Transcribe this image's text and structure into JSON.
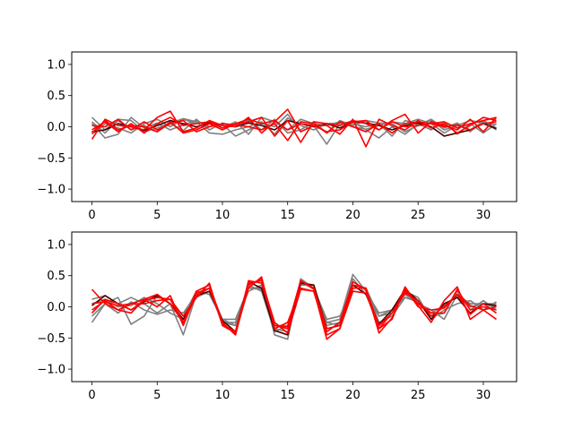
{
  "figure": {
    "background": "#ffffff",
    "colors": {
      "gray_series": "#808080",
      "dark_series": "#4a0000",
      "red_series": "#ff0000"
    }
  },
  "chart_data": [
    {
      "type": "line",
      "title": "",
      "xlabel": "",
      "ylabel": "",
      "xlim": [
        -1.55,
        32.55
      ],
      "ylim": [
        -1.2,
        1.2
      ],
      "xticks": [
        0,
        5,
        10,
        15,
        20,
        25,
        30
      ],
      "yticks": [
        -1.0,
        -0.5,
        0.0,
        0.5,
        1.0
      ],
      "xtick_labels": [
        "0",
        "5",
        "10",
        "15",
        "20",
        "25",
        "30"
      ],
      "ytick_labels": [
        "−1.0",
        "−0.5",
        "0.0",
        "0.5",
        "1.0"
      ],
      "grid": false,
      "x": [
        0,
        1,
        2,
        3,
        4,
        5,
        6,
        7,
        8,
        9,
        10,
        11,
        12,
        13,
        14,
        15,
        16,
        17,
        18,
        19,
        20,
        21,
        22,
        23,
        24,
        25,
        26,
        27,
        28,
        29,
        30,
        31
      ],
      "series": [
        {
          "color": "#808080",
          "values": [
            0.15,
            -0.05,
            0.12,
            0.1,
            -0.08,
            -0.02,
            0.06,
            0.13,
            0.08,
            -0.1,
            -0.12,
            -0.05,
            0.0,
            0.08,
            -0.12,
            0.14,
            0.02,
            -0.05,
            0.05,
            0.06,
            0.0,
            -0.04,
            0.02,
            0.08,
            0.05,
            0.12,
            0.05,
            -0.1,
            0.02,
            0.1,
            0.06,
            0.04
          ]
        },
        {
          "color": "#808080",
          "values": [
            0.05,
            -0.18,
            -0.12,
            0.15,
            -0.02,
            0.06,
            -0.05,
            0.03,
            0.1,
            0.0,
            0.04,
            -0.15,
            -0.05,
            0.05,
            0.0,
            0.2,
            -0.08,
            0.02,
            -0.28,
            0.05,
            0.08,
            -0.05,
            -0.18,
            0.0,
            -0.12,
            0.05,
            0.1,
            -0.05,
            0.02,
            -0.05,
            0.08,
            -0.05
          ]
        },
        {
          "color": "#808080",
          "values": [
            -0.12,
            0.05,
            -0.02,
            -0.1,
            0.05,
            0.12,
            0.0,
            0.12,
            0.05,
            0.08,
            -0.02,
            0.08,
            -0.12,
            0.15,
            0.08,
            -0.05,
            0.12,
            0.05,
            0.02,
            0.08,
            0.05,
            0.0,
            0.05,
            -0.15,
            0.1,
            0.05,
            -0.05,
            0.08,
            -0.12,
            0.05,
            -0.1,
            0.05
          ]
        },
        {
          "color": "#808080",
          "values": [
            0.08,
            -0.1,
            0.1,
            -0.05,
            0.02,
            -0.08,
            0.05,
            -0.06,
            0.12,
            -0.05,
            0.06,
            0.0,
            0.1,
            -0.05,
            0.12,
            -0.1,
            -0.05,
            0.08,
            -0.1,
            0.1,
            0.02,
            0.1,
            0.06,
            0.05,
            -0.08,
            0.02,
            0.12,
            -0.02,
            0.06,
            -0.08,
            0.1,
            -0.02
          ]
        },
        {
          "color": "#4a0000",
          "values": [
            -0.08,
            -0.05,
            0.05,
            0.0,
            -0.06,
            0.02,
            0.1,
            0.05,
            0.0,
            0.06,
            0.02,
            0.0,
            0.06,
            0.02,
            -0.05,
            0.1,
            0.05,
            0.0,
            0.05,
            -0.02,
            0.08,
            0.06,
            0.02,
            -0.05,
            0.02,
            0.06,
            0.0,
            -0.15,
            -0.1,
            -0.05,
            0.05,
            -0.03
          ]
        },
        {
          "color": "#ff0000",
          "values": [
            -0.2,
            0.12,
            0.02,
            0.0,
            -0.05,
            0.15,
            0.25,
            -0.08,
            -0.02,
            0.1,
            0.02,
            0.0,
            0.15,
            -0.1,
            0.08,
            0.28,
            -0.08,
            0.02,
            0.02,
            -0.12,
            0.12,
            -0.32,
            0.12,
            0.02,
            -0.05,
            0.1,
            -0.02,
            0.05,
            -0.1,
            0.02,
            0.15,
            0.1
          ]
        },
        {
          "color": "#ff0000",
          "values": [
            -0.05,
            0.08,
            -0.08,
            0.05,
            -0.1,
            0.05,
            0.15,
            0.02,
            0.05,
            0.08,
            -0.02,
            0.05,
            0.08,
            0.15,
            -0.15,
            0.1,
            -0.25,
            0.08,
            0.05,
            0.02,
            0.1,
            0.05,
            -0.05,
            0.1,
            0.2,
            -0.1,
            0.08,
            0.02,
            -0.05,
            0.12,
            -0.08,
            0.15
          ]
        },
        {
          "color": "#ff0000",
          "values": [
            0.02,
            0.0,
            0.12,
            -0.05,
            0.08,
            -0.05,
            0.05,
            0.1,
            -0.08,
            0.0,
            0.05,
            0.03,
            0.0,
            -0.05,
            0.05,
            -0.22,
            0.08,
            0.05,
            -0.1,
            0.08,
            0.0,
            -0.08,
            0.05,
            -0.1,
            0.05,
            0.08,
            0.05,
            0.0,
            0.03,
            -0.05,
            0.05,
            0.08
          ]
        },
        {
          "color": "#ff0000",
          "values": [
            -0.1,
            0.1,
            -0.05,
            0.02,
            0.0,
            -0.08,
            0.08,
            -0.1,
            -0.05,
            0.05,
            -0.05,
            0.05,
            0.12,
            0.05,
            0.1,
            -0.05,
            0.05,
            0.02,
            -0.08,
            -0.05,
            0.08,
            0.1,
            -0.05,
            0.08,
            0.0,
            0.02,
            0.05,
            0.08,
            -0.02,
            0.05,
            0.1,
            0.15
          ]
        }
      ]
    },
    {
      "type": "line",
      "title": "",
      "xlabel": "",
      "ylabel": "",
      "xlim": [
        -1.55,
        32.55
      ],
      "ylim": [
        -1.2,
        1.2
      ],
      "xticks": [
        0,
        5,
        10,
        15,
        20,
        25,
        30
      ],
      "yticks": [
        -1.0,
        -0.5,
        0.0,
        0.5,
        1.0
      ],
      "xtick_labels": [
        "0",
        "5",
        "10",
        "15",
        "20",
        "25",
        "30"
      ],
      "ytick_labels": [
        "−1.0",
        "−0.5",
        "0.0",
        "0.5",
        "1.0"
      ],
      "grid": false,
      "x": [
        0,
        1,
        2,
        3,
        4,
        5,
        6,
        7,
        8,
        9,
        10,
        11,
        12,
        13,
        14,
        15,
        16,
        17,
        18,
        19,
        20,
        21,
        22,
        23,
        24,
        25,
        26,
        27,
        28,
        29,
        30,
        31
      ],
      "series": [
        {
          "color": "#808080",
          "values": [
            -0.25,
            0.05,
            0.15,
            -0.28,
            -0.15,
            0.18,
            0.05,
            -0.45,
            0.2,
            0.3,
            -0.25,
            -0.25,
            0.25,
            0.35,
            -0.45,
            -0.52,
            0.45,
            0.3,
            -0.25,
            -0.2,
            0.52,
            0.25,
            -0.1,
            -0.05,
            0.25,
            0.15,
            -0.2,
            -0.05,
            0.05,
            0.1,
            -0.05,
            0.08
          ]
        },
        {
          "color": "#808080",
          "values": [
            0.12,
            0.18,
            0.05,
            0.15,
            0.05,
            -0.1,
            0.05,
            -0.15,
            0.25,
            0.2,
            -0.2,
            -0.3,
            0.3,
            0.28,
            -0.3,
            -0.3,
            0.35,
            0.35,
            -0.3,
            -0.25,
            0.35,
            0.3,
            -0.25,
            -0.15,
            0.15,
            0.1,
            -0.15,
            -0.1,
            0.25,
            -0.05,
            0.1,
            -0.05
          ]
        },
        {
          "color": "#808080",
          "values": [
            0.05,
            0.12,
            0.0,
            0.02,
            0.15,
            0.05,
            -0.1,
            -0.2,
            0.15,
            0.25,
            -0.25,
            -0.3,
            0.35,
            0.25,
            -0.4,
            -0.3,
            0.4,
            0.3,
            -0.2,
            -0.15,
            0.3,
            0.3,
            -0.15,
            -0.1,
            0.2,
            0.05,
            -0.05,
            -0.2,
            0.2,
            0.05,
            0.05,
            0.0
          ]
        },
        {
          "color": "#808080",
          "values": [
            -0.15,
            0.05,
            -0.1,
            0.08,
            -0.05,
            -0.12,
            -0.05,
            -0.1,
            0.2,
            0.3,
            -0.2,
            -0.2,
            0.3,
            0.3,
            -0.35,
            -0.4,
            0.38,
            0.3,
            -0.25,
            -0.3,
            0.45,
            0.2,
            -0.15,
            -0.05,
            0.15,
            0.08,
            -0.1,
            0.02,
            0.18,
            0.0,
            0.05,
            0.05
          ]
        },
        {
          "color": "#4a0000",
          "values": [
            0.02,
            0.18,
            0.05,
            -0.05,
            0.08,
            0.18,
            0.05,
            -0.2,
            0.18,
            0.25,
            -0.22,
            -0.4,
            0.4,
            0.3,
            -0.38,
            -0.45,
            0.38,
            0.35,
            -0.35,
            -0.3,
            0.35,
            0.2,
            -0.28,
            -0.05,
            0.28,
            0.1,
            -0.2,
            0.05,
            0.15,
            -0.1,
            0.05,
            0.02
          ]
        },
        {
          "color": "#ff0000",
          "values": [
            0.28,
            0.05,
            -0.05,
            -0.1,
            0.12,
            0.2,
            0.05,
            -0.25,
            0.25,
            0.35,
            -0.25,
            -0.45,
            0.35,
            0.45,
            -0.3,
            -0.32,
            0.42,
            0.28,
            -0.52,
            -0.35,
            0.35,
            0.3,
            -0.42,
            -0.18,
            0.32,
            0.02,
            -0.25,
            0.1,
            0.32,
            -0.2,
            -0.05,
            -0.2
          ]
        },
        {
          "color": "#ff0000",
          "values": [
            -0.1,
            0.12,
            0.05,
            -0.05,
            0.1,
            0.15,
            0.12,
            -0.15,
            0.15,
            0.38,
            -0.3,
            -0.42,
            0.3,
            0.48,
            -0.35,
            -0.25,
            0.3,
            0.25,
            -0.45,
            -0.35,
            0.25,
            0.22,
            -0.35,
            -0.2,
            0.3,
            0.0,
            -0.05,
            -0.02,
            0.2,
            -0.12,
            0.05,
            -0.1
          ]
        },
        {
          "color": "#ff0000",
          "values": [
            0.05,
            0.08,
            0.02,
            0.05,
            0.12,
            0.0,
            0.18,
            -0.3,
            0.22,
            0.3,
            -0.25,
            -0.45,
            0.42,
            0.38,
            -0.3,
            -0.35,
            0.42,
            0.3,
            -0.35,
            -0.3,
            0.3,
            0.3,
            -0.35,
            -0.1,
            0.22,
            0.1,
            -0.15,
            0.0,
            0.2,
            0.02,
            -0.05,
            0.0
          ]
        },
        {
          "color": "#ff0000",
          "values": [
            -0.05,
            0.1,
            -0.05,
            0.05,
            0.05,
            0.1,
            0.12,
            -0.25,
            0.18,
            0.3,
            -0.28,
            -0.4,
            0.38,
            0.42,
            -0.25,
            -0.42,
            0.28,
            0.25,
            -0.4,
            -0.25,
            0.4,
            0.28,
            -0.3,
            -0.1,
            0.25,
            0.05,
            -0.1,
            -0.1,
            0.28,
            -0.05,
            0.0,
            -0.05
          ]
        }
      ]
    }
  ]
}
